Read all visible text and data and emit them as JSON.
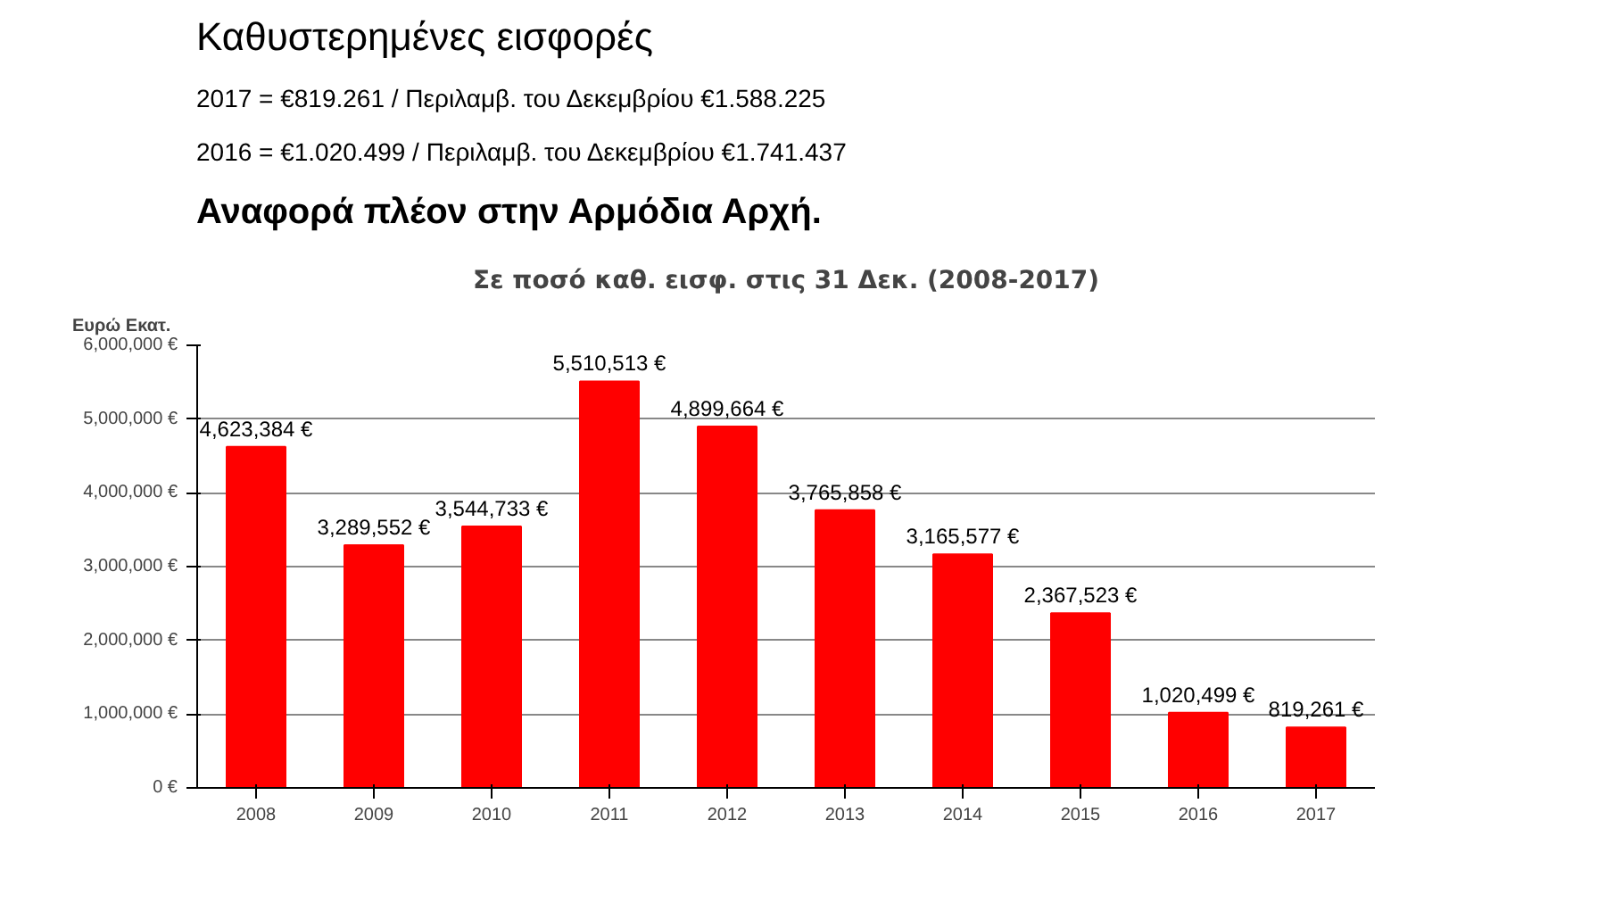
{
  "chart_data": {
    "type": "bar",
    "title": "Καθυστερημένες εισφορές",
    "subtitle": "Σε ποσό καθ. εισφ. στις 31 Δεκ. (2008-2017)",
    "annotations": [
      "2017 = €819.261 / Περιλαμβ. του Δεκεμβρίου €1.588.225",
      "2016 = €1.020.499 / Περιλαμβ. του Δεκεμβρίου €1.741.437",
      "Αναφορά πλέον στην Αρμόδια Αρχή."
    ],
    "ylabel": "Ευρώ Εκατ.",
    "categories": [
      "2008",
      "2009",
      "2010",
      "2011",
      "2012",
      "2013",
      "2014",
      "2015",
      "2016",
      "2017"
    ],
    "values": [
      4623384,
      3289552,
      3544733,
      5510513,
      4899664,
      3765858,
      3165577,
      2367523,
      1020499,
      819261
    ],
    "value_labels": [
      "4,623,384 €",
      "3,289,552 €",
      "3,544,733 €",
      "5,510,513 €",
      "4,899,664 €",
      "3,765,858 €",
      "3,165,577 €",
      "2,367,523 €",
      "1,020,499 €",
      "819,261 €"
    ],
    "color": "#ff0000",
    "ylim": [
      0,
      6000000
    ],
    "yticks": [
      {
        "value": 0,
        "label": "0 €"
      },
      {
        "value": 1000000,
        "label": "1,000,000 €"
      },
      {
        "value": 2000000,
        "label": "2,000,000 €"
      },
      {
        "value": 3000000,
        "label": "3,000,000 €"
      },
      {
        "value": 4000000,
        "label": "4,000,000 €"
      },
      {
        "value": 5000000,
        "label": "5,000,000 €"
      },
      {
        "value": 6000000,
        "label": "6,000,000 €"
      }
    ],
    "grid": "y"
  }
}
